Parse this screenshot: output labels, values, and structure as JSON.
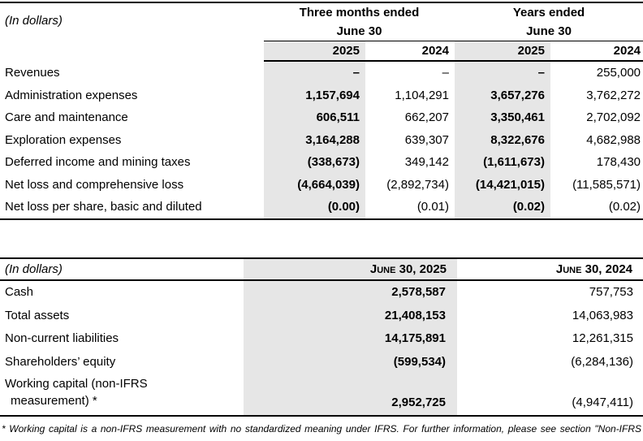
{
  "table1": {
    "in_dollars_label": "(In dollars)",
    "groups": [
      {
        "line1": "Three months ended",
        "line2": "June 30"
      },
      {
        "line1": "Years ended",
        "line2": "June 30"
      }
    ],
    "years": [
      "2025",
      "2024",
      "2025",
      "2024"
    ],
    "rows": [
      {
        "label": "Revenues",
        "c1": "–",
        "c2": "–",
        "c3": "–",
        "c4": "255,000"
      },
      {
        "label": "Administration expenses",
        "c1": "1,157,694",
        "c2": "1,104,291",
        "c3": "3,657,276",
        "c4": "3,762,272"
      },
      {
        "label": "Care and maintenance",
        "c1": "606,511",
        "c2": "662,207",
        "c3": "3,350,461",
        "c4": "2,702,092"
      },
      {
        "label": "Exploration expenses",
        "c1": "3,164,288",
        "c2": "639,307",
        "c3": "8,322,676",
        "c4": "4,682,988"
      },
      {
        "label": "Deferred income and mining taxes",
        "c1": "(338,673)",
        "c2": "349,142",
        "c3": "(1,611,673)",
        "c4": "178,430"
      },
      {
        "label": "Net loss and comprehensive loss",
        "c1": "(4,664,039)",
        "c2": "(2,892,734)",
        "c3": "(14,421,015)",
        "c4": "(11,585,571)"
      },
      {
        "label": "Net loss per share, basic and diluted",
        "c1": "(0.00)",
        "c2": "(0.01)",
        "c3": "(0.02)",
        "c4": "(0.02)"
      }
    ]
  },
  "table2": {
    "in_dollars_label": "(In dollars)",
    "col_headers": [
      "June 30, 2025",
      "June 30, 2024"
    ],
    "rows": [
      {
        "label": "Cash",
        "c1": "2,578,587",
        "c2": "757,753"
      },
      {
        "label": "Total assets",
        "c1": "21,408,153",
        "c2": "14,063,983"
      },
      {
        "label": "Non-current liabilities",
        "c1": "14,175,891",
        "c2": "12,261,315"
      },
      {
        "label": "Shareholders’ equity",
        "c1": "(599,534)",
        "c2": "(6,284,136)"
      }
    ],
    "working_capital_row": {
      "label_line1": "Working capital (non-IFRS",
      "label_line2": "measurement) *",
      "c1": "2,952,725",
      "c2": "(4,947,411)"
    }
  },
  "footnote": "* Working capital is a non-IFRS measurement with no standardized meaning under IFRS. For further information, please see section \"Non-IFRS Measure\".",
  "colors": {
    "shade": "#e6e6e6",
    "border": "#000000"
  }
}
